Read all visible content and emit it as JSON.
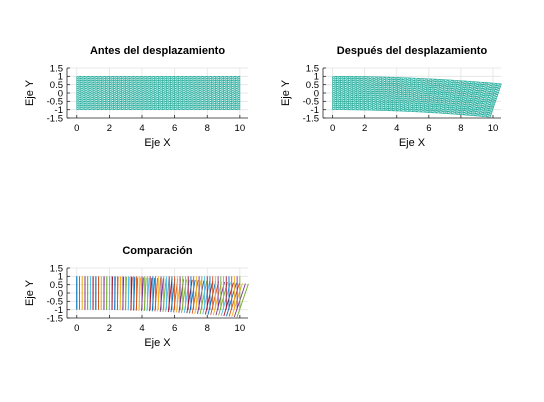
{
  "chart_data": [
    {
      "type": "mesh",
      "title": "Antes del desplazamiento",
      "xlabel": "Eje X",
      "ylabel": "Eje Y",
      "xlim": [
        -0.6,
        10.5
      ],
      "ylim": [
        -1.5,
        1.5
      ],
      "xticks": [
        "0",
        "2",
        "4",
        "6",
        "8",
        "10"
      ],
      "yticks": [
        "1.5",
        "1",
        "0.5",
        "0",
        "-0.5",
        "-1",
        "-1.5"
      ],
      "grid": true,
      "mesh": {
        "x_range": [
          0,
          10
        ],
        "y_range": [
          -1,
          1
        ],
        "displacement_at_x10": 0
      },
      "color": "#2ab0a0"
    },
    {
      "type": "mesh",
      "title": "Después del desplazamiento",
      "xlabel": "Eje X",
      "ylabel": "Eje Y",
      "xlim": [
        -0.6,
        10.5
      ],
      "ylim": [
        -1.5,
        1.5
      ],
      "xticks": [
        "0",
        "2",
        "4",
        "6",
        "8",
        "10"
      ],
      "yticks": [
        "1.5",
        "1",
        "0.5",
        "0",
        "-0.5",
        "-1",
        "-1.5"
      ],
      "grid": true,
      "mesh": {
        "x_range": [
          0,
          10
        ],
        "y_range": [
          -1,
          1
        ],
        "displacement_at_x10": -0.45,
        "end_shift_x": 0.35
      },
      "color": "#2ab0a0"
    },
    {
      "type": "mesh-comparison",
      "title": "Comparación",
      "xlabel": "Eje X",
      "ylabel": "Eje Y",
      "xlim": [
        -0.6,
        10.5
      ],
      "ylim": [
        -1.5,
        1.5
      ],
      "xticks": [
        "0",
        "2",
        "4",
        "6",
        "8",
        "10"
      ],
      "yticks": [
        "1.5",
        "1",
        "0.5",
        "0",
        "-0.5",
        "-1",
        "-1.5"
      ],
      "grid": true,
      "mesh": {
        "x_range": [
          0,
          10
        ],
        "y_range": [
          -1,
          1
        ],
        "displacement_at_x10": -0.45,
        "end_shift_x": 0.35
      },
      "colors": [
        "#0072bd",
        "#d95319",
        "#edb120",
        "#7e2f8e",
        "#77ac30",
        "#4dbeee",
        "#a2142f"
      ]
    }
  ]
}
